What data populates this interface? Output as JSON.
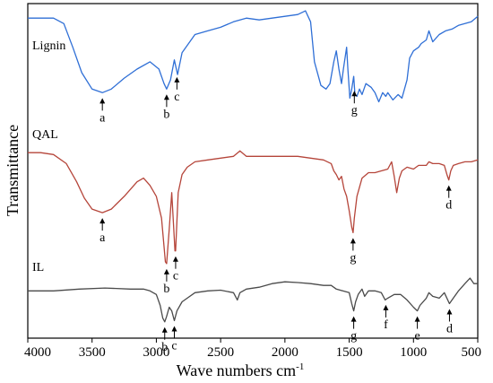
{
  "chart_data": {
    "type": "line",
    "title": "",
    "xlabel": "Wave numbers cm",
    "xlabel_superscript": "-1",
    "ylabel": "Transmittance",
    "xlim": [
      4000,
      500
    ],
    "x_reversed": true,
    "x_ticks": [
      "4000",
      "3500",
      "3000",
      "2500",
      "2000",
      "1500",
      "1000",
      "500"
    ],
    "grid": false,
    "y_ticks_shown": false,
    "series": [
      {
        "name": "Lignin",
        "color": "#2f6fd6",
        "points": [
          [
            4000,
            88
          ],
          [
            3900,
            88
          ],
          [
            3800,
            88
          ],
          [
            3720,
            86.5
          ],
          [
            3650,
            80
          ],
          [
            3580,
            73
          ],
          [
            3500,
            68.5
          ],
          [
            3420,
            67.5
          ],
          [
            3350,
            68.5
          ],
          [
            3250,
            71.5
          ],
          [
            3150,
            74
          ],
          [
            3050,
            76
          ],
          [
            2980,
            74
          ],
          [
            2940,
            70
          ],
          [
            2920,
            68.5
          ],
          [
            2890,
            71
          ],
          [
            2860,
            76.5
          ],
          [
            2835,
            72.5
          ],
          [
            2800,
            78.5
          ],
          [
            2750,
            81
          ],
          [
            2700,
            83.5
          ],
          [
            2600,
            84.5
          ],
          [
            2500,
            85.5
          ],
          [
            2400,
            87
          ],
          [
            2300,
            88
          ],
          [
            2200,
            87.5
          ],
          [
            2100,
            88
          ],
          [
            2000,
            88.5
          ],
          [
            1900,
            89
          ],
          [
            1840,
            90
          ],
          [
            1800,
            87
          ],
          [
            1770,
            76
          ],
          [
            1720,
            69.5
          ],
          [
            1700,
            69
          ],
          [
            1680,
            68.5
          ],
          [
            1650,
            70
          ],
          [
            1620,
            76
          ],
          [
            1600,
            79
          ],
          [
            1580,
            74
          ],
          [
            1560,
            70
          ],
          [
            1545,
            74
          ],
          [
            1520,
            80
          ],
          [
            1510,
            74
          ],
          [
            1495,
            66
          ],
          [
            1480,
            68.5
          ],
          [
            1465,
            72
          ],
          [
            1455,
            67
          ],
          [
            1440,
            66.5
          ],
          [
            1420,
            68.5
          ],
          [
            1400,
            67
          ],
          [
            1370,
            70
          ],
          [
            1330,
            69
          ],
          [
            1300,
            67.5
          ],
          [
            1270,
            65
          ],
          [
            1240,
            67.5
          ],
          [
            1215,
            66.5
          ],
          [
            1200,
            67.5
          ],
          [
            1160,
            65.5
          ],
          [
            1120,
            67
          ],
          [
            1090,
            66
          ],
          [
            1050,
            71
          ],
          [
            1030,
            77
          ],
          [
            1000,
            79
          ],
          [
            960,
            80
          ],
          [
            940,
            81
          ],
          [
            900,
            82
          ],
          [
            880,
            84.5
          ],
          [
            850,
            81.5
          ],
          [
            800,
            83.5
          ],
          [
            750,
            84.5
          ],
          [
            700,
            85
          ],
          [
            650,
            86
          ],
          [
            600,
            86.5
          ],
          [
            550,
            87
          ],
          [
            500,
            88.5
          ]
        ]
      },
      {
        "name": "QAL",
        "color": "#b5453a",
        "points": [
          [
            4000,
            51
          ],
          [
            3900,
            51
          ],
          [
            3800,
            50.5
          ],
          [
            3700,
            48
          ],
          [
            3620,
            43
          ],
          [
            3560,
            38.5
          ],
          [
            3500,
            35.5
          ],
          [
            3420,
            34.5
          ],
          [
            3350,
            35.5
          ],
          [
            3250,
            39
          ],
          [
            3150,
            43
          ],
          [
            3100,
            44
          ],
          [
            3050,
            42
          ],
          [
            3000,
            39
          ],
          [
            2960,
            33
          ],
          [
            2930,
            21
          ],
          [
            2920,
            20.5
          ],
          [
            2900,
            30
          ],
          [
            2880,
            40
          ],
          [
            2855,
            24
          ],
          [
            2850,
            24
          ],
          [
            2830,
            40
          ],
          [
            2800,
            45
          ],
          [
            2760,
            47
          ],
          [
            2700,
            48.5
          ],
          [
            2600,
            49
          ],
          [
            2500,
            49.5
          ],
          [
            2400,
            50
          ],
          [
            2350,
            51.5
          ],
          [
            2300,
            50
          ],
          [
            2200,
            50
          ],
          [
            2100,
            50
          ],
          [
            2000,
            50
          ],
          [
            1900,
            50
          ],
          [
            1800,
            49.5
          ],
          [
            1700,
            49
          ],
          [
            1640,
            48
          ],
          [
            1620,
            46
          ],
          [
            1600,
            45
          ],
          [
            1580,
            43.5
          ],
          [
            1560,
            44.5
          ],
          [
            1540,
            41
          ],
          [
            1520,
            39
          ],
          [
            1500,
            35
          ],
          [
            1480,
            30.5
          ],
          [
            1470,
            29
          ],
          [
            1460,
            33
          ],
          [
            1440,
            39
          ],
          [
            1400,
            44
          ],
          [
            1350,
            45.5
          ],
          [
            1300,
            45.5
          ],
          [
            1250,
            46
          ],
          [
            1200,
            46.5
          ],
          [
            1170,
            48.5
          ],
          [
            1150,
            44.5
          ],
          [
            1130,
            40
          ],
          [
            1110,
            44
          ],
          [
            1090,
            46
          ],
          [
            1050,
            47
          ],
          [
            1000,
            46.5
          ],
          [
            960,
            47.5
          ],
          [
            900,
            47.5
          ],
          [
            880,
            48.5
          ],
          [
            850,
            48
          ],
          [
            800,
            48
          ],
          [
            760,
            47.5
          ],
          [
            740,
            45
          ],
          [
            725,
            43.5
          ],
          [
            710,
            46
          ],
          [
            690,
            47.5
          ],
          [
            650,
            48
          ],
          [
            600,
            48.5
          ],
          [
            550,
            48.5
          ],
          [
            500,
            49
          ]
        ]
      },
      {
        "name": "IL",
        "color": "#4a4a4a",
        "points": [
          [
            4000,
            13
          ],
          [
            3800,
            13
          ],
          [
            3600,
            13.5
          ],
          [
            3400,
            13.8
          ],
          [
            3200,
            13.5
          ],
          [
            3100,
            13.5
          ],
          [
            3050,
            13
          ],
          [
            3000,
            12
          ],
          [
            2970,
            9
          ],
          [
            2950,
            5.5
          ],
          [
            2935,
            4.5
          ],
          [
            2920,
            6
          ],
          [
            2900,
            8.5
          ],
          [
            2880,
            7.5
          ],
          [
            2860,
            4.8
          ],
          [
            2840,
            7.5
          ],
          [
            2800,
            10
          ],
          [
            2760,
            11
          ],
          [
            2700,
            12.5
          ],
          [
            2600,
            13
          ],
          [
            2500,
            13.2
          ],
          [
            2400,
            12.5
          ],
          [
            2370,
            10.5
          ],
          [
            2350,
            12.5
          ],
          [
            2300,
            13.5
          ],
          [
            2200,
            14
          ],
          [
            2100,
            15
          ],
          [
            2000,
            15.5
          ],
          [
            1900,
            15.3
          ],
          [
            1800,
            15
          ],
          [
            1700,
            14.5
          ],
          [
            1640,
            14.5
          ],
          [
            1600,
            13.5
          ],
          [
            1550,
            13
          ],
          [
            1500,
            12.5
          ],
          [
            1480,
            9.5
          ],
          [
            1465,
            7.5
          ],
          [
            1450,
            10
          ],
          [
            1430,
            12
          ],
          [
            1400,
            13.5
          ],
          [
            1380,
            11.5
          ],
          [
            1350,
            13
          ],
          [
            1300,
            13
          ],
          [
            1250,
            12.5
          ],
          [
            1220,
            10.5
          ],
          [
            1200,
            11
          ],
          [
            1150,
            12
          ],
          [
            1100,
            12
          ],
          [
            1050,
            10.5
          ],
          [
            1000,
            8.5
          ],
          [
            970,
            7.5
          ],
          [
            950,
            9
          ],
          [
            900,
            11
          ],
          [
            880,
            12.5
          ],
          [
            850,
            11.5
          ],
          [
            800,
            11
          ],
          [
            760,
            12.5
          ],
          [
            720,
            9.5
          ],
          [
            700,
            10.5
          ],
          [
            650,
            13
          ],
          [
            600,
            15
          ],
          [
            560,
            16.5
          ],
          [
            530,
            15
          ],
          [
            500,
            15
          ]
        ]
      }
    ],
    "annotations": [
      {
        "series": "Lignin",
        "label": "a",
        "x": 3420
      },
      {
        "series": "Lignin",
        "label": "b",
        "x": 2920
      },
      {
        "series": "Lignin",
        "label": "c",
        "x": 2840
      },
      {
        "series": "Lignin",
        "label": "g",
        "x": 1460
      },
      {
        "series": "QAL",
        "label": "a",
        "x": 3420
      },
      {
        "series": "QAL",
        "label": "b",
        "x": 2920
      },
      {
        "series": "QAL",
        "label": "c",
        "x": 2850
      },
      {
        "series": "QAL",
        "label": "g",
        "x": 1470
      },
      {
        "series": "QAL",
        "label": "d",
        "x": 725
      },
      {
        "series": "IL",
        "label": "b",
        "x": 2935
      },
      {
        "series": "IL",
        "label": "c",
        "x": 2860
      },
      {
        "series": "IL",
        "label": "g",
        "x": 1465
      },
      {
        "series": "IL",
        "label": "f",
        "x": 1215
      },
      {
        "series": "IL",
        "label": "e",
        "x": 970
      },
      {
        "series": "IL",
        "label": "d",
        "x": 720
      }
    ]
  }
}
